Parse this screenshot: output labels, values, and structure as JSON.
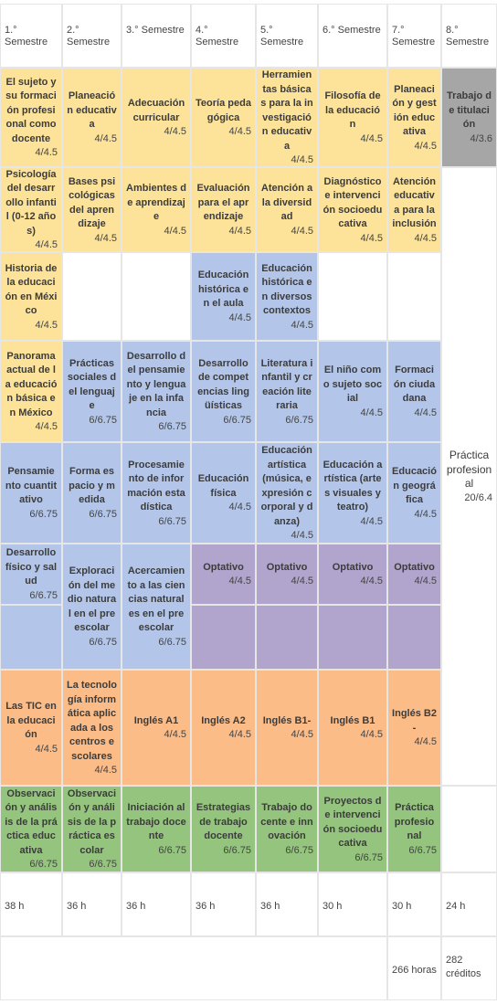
{
  "headers": [
    "1.° Semestre",
    "2.° Semestre",
    "3.° Semestre",
    "4.° Semestre",
    "5.° Semestre",
    "6.° Semestre",
    "7.° Semestre",
    "8.° Semestre"
  ],
  "colors": {
    "yellow": "#fde39a",
    "blue": "#b3c6ea",
    "purple": "#b1a4cd",
    "orange": "#fbbc88",
    "green": "#94c47d",
    "gray": "#a6a6a6",
    "white": "#ffffff"
  },
  "cells": [
    {
      "name": "El sujeto y su formación profesional como docente",
      "credits": "4/4.5",
      "color": "yellow",
      "col": 0,
      "row": 0,
      "span": 1
    },
    {
      "name": "Planeación educativa",
      "credits": "4/4.5",
      "color": "yellow",
      "col": 1,
      "row": 0,
      "span": 1
    },
    {
      "name": "Adecuación curricular",
      "credits": "4/4.5",
      "color": "yellow",
      "col": 2,
      "row": 0,
      "span": 1
    },
    {
      "name": "Teoría pedagógica",
      "credits": "4/4.5",
      "color": "yellow",
      "col": 3,
      "row": 0,
      "span": 1
    },
    {
      "name": "Herramientas básicas para la investigación educativa",
      "credits": "4/4.5",
      "color": "yellow",
      "col": 4,
      "row": 0,
      "span": 1
    },
    {
      "name": "Filosofía de la educación",
      "credits": "4/4.5",
      "color": "yellow",
      "col": 5,
      "row": 0,
      "span": 1
    },
    {
      "name": "Planeación y gestión educativa",
      "credits": "4/4.5",
      "color": "yellow",
      "col": 6,
      "row": 0,
      "span": 1
    },
    {
      "name": "Trabajo de titulación",
      "credits": "4/3.6",
      "color": "gray",
      "col": 7,
      "row": 0,
      "span": 1
    },
    {
      "name": "Psicología del desarrollo infantil (0-12 años)",
      "credits": "4/4.5",
      "color": "yellow",
      "col": 0,
      "row": 1,
      "span": 1
    },
    {
      "name": "Bases psicológicas del aprendizaje",
      "credits": "4/4.5",
      "color": "yellow",
      "col": 1,
      "row": 1,
      "span": 1
    },
    {
      "name": "Ambientes de aprendizaje",
      "credits": "4/4.5",
      "color": "yellow",
      "col": 2,
      "row": 1,
      "span": 1
    },
    {
      "name": "Evaluación para el aprendizaje",
      "credits": "4/4.5",
      "color": "yellow",
      "col": 3,
      "row": 1,
      "span": 1
    },
    {
      "name": "Atención a la diversidad",
      "credits": "4/4.5",
      "color": "yellow",
      "col": 4,
      "row": 1,
      "span": 1
    },
    {
      "name": "Diagnóstico e intervención socioeducativa",
      "credits": "4/4.5",
      "color": "yellow",
      "col": 5,
      "row": 1,
      "span": 1
    },
    {
      "name": "Atención educativa para la inclusión",
      "credits": "4/4.5",
      "color": "yellow",
      "col": 6,
      "row": 1,
      "span": 1
    },
    {
      "name": "Práctica profesional",
      "credits": "20/6.4",
      "color": "white",
      "col": 7,
      "row": 1,
      "span": 7
    },
    {
      "name": "Historia de la educación en México",
      "credits": "4/4.5",
      "color": "yellow",
      "col": 0,
      "row": 2,
      "span": 1
    },
    {
      "name": "",
      "credits": "",
      "color": "white",
      "col": 1,
      "row": 2,
      "span": 1
    },
    {
      "name": "",
      "credits": "",
      "color": "white",
      "col": 2,
      "row": 2,
      "span": 1
    },
    {
      "name": "Educación histórica en el aula",
      "credits": "4/4.5",
      "color": "blue",
      "col": 3,
      "row": 2,
      "span": 1
    },
    {
      "name": "Educación histórica en diversos contextos",
      "credits": "4/4.5",
      "color": "blue",
      "col": 4,
      "row": 2,
      "span": 1
    },
    {
      "name": "",
      "credits": "",
      "color": "white",
      "col": 5,
      "row": 2,
      "span": 1
    },
    {
      "name": "",
      "credits": "",
      "color": "white",
      "col": 6,
      "row": 2,
      "span": 1
    },
    {
      "name": "Panorama actual de la educación básica en México",
      "credits": "4/4.5",
      "color": "yellow",
      "col": 0,
      "row": 3,
      "span": 1
    },
    {
      "name": "Prácticas sociales del lenguaje",
      "credits": "6/6.75",
      "color": "blue",
      "col": 1,
      "row": 3,
      "span": 1
    },
    {
      "name": "Desarrollo del pensamiento y lenguaje en la infancia",
      "credits": "6/6.75",
      "color": "blue",
      "col": 2,
      "row": 3,
      "span": 1
    },
    {
      "name": "Desarrollo de competencias lingüísticas",
      "credits": "6/6.75",
      "color": "blue",
      "col": 3,
      "row": 3,
      "span": 1
    },
    {
      "name": "Literatura infantil y creación literaria",
      "credits": "6/6.75",
      "color": "blue",
      "col": 4,
      "row": 3,
      "span": 1
    },
    {
      "name": "El niño como sujeto social",
      "credits": "4/4.5",
      "color": "blue",
      "col": 5,
      "row": 3,
      "span": 1
    },
    {
      "name": "Formación ciudadana",
      "credits": "4/4.5",
      "color": "blue",
      "col": 6,
      "row": 3,
      "span": 1
    },
    {
      "name": "Pensamiento cuantitativo",
      "credits": "6/6.75",
      "color": "blue",
      "col": 0,
      "row": 4,
      "span": 1
    },
    {
      "name": "Forma espacio y medida",
      "credits": "6/6.75",
      "color": "blue",
      "col": 1,
      "row": 4,
      "span": 1
    },
    {
      "name": "Procesamiento de información estadística",
      "credits": "6/6.75",
      "color": "blue",
      "col": 2,
      "row": 4,
      "span": 1
    },
    {
      "name": "Educación física",
      "credits": "4/4.5",
      "color": "blue",
      "col": 3,
      "row": 4,
      "span": 1
    },
    {
      "name": "Educación artística (música, expresión corporal y danza)",
      "credits": "4/4.5",
      "color": "blue",
      "col": 4,
      "row": 4,
      "span": 1
    },
    {
      "name": "Educación artística (artes visuales y teatro)",
      "credits": "4/4.5",
      "color": "blue",
      "col": 5,
      "row": 4,
      "span": 1
    },
    {
      "name": "Educación geográfica",
      "credits": "4/4.5",
      "color": "blue",
      "col": 6,
      "row": 4,
      "span": 1
    },
    {
      "name": "Desarrollo físico y salud",
      "credits": "6/6.75",
      "color": "blue",
      "col": 0,
      "row": 5,
      "span": 1
    },
    {
      "name": "Exploración del medio natural en el preescolar",
      "credits": "6/6.75",
      "color": "blue",
      "col": 1,
      "row": 5,
      "span": 2
    },
    {
      "name": "Acercamiento a las ciencias naturales en el preescolar",
      "credits": "6/6.75",
      "color": "blue",
      "col": 2,
      "row": 5,
      "span": 2
    },
    {
      "name": "Optativo",
      "credits": "4/4.5",
      "color": "purple",
      "col": 3,
      "row": 5,
      "span": 1
    },
    {
      "name": "Optativo",
      "credits": "4/4.5",
      "color": "purple",
      "col": 4,
      "row": 5,
      "span": 1
    },
    {
      "name": "Optativo",
      "credits": "4/4.5",
      "color": "purple",
      "col": 5,
      "row": 5,
      "span": 1
    },
    {
      "name": "Optativo",
      "credits": "4/4.5",
      "color": "purple",
      "col": 6,
      "row": 5,
      "span": 1
    },
    {
      "name": "",
      "credits": "",
      "color": "blue",
      "col": 0,
      "row": 6,
      "span": 1
    },
    {
      "name": "",
      "credits": "",
      "color": "purple",
      "col": 3,
      "row": 6,
      "span": 1
    },
    {
      "name": "",
      "credits": "",
      "color": "purple",
      "col": 4,
      "row": 6,
      "span": 1
    },
    {
      "name": "",
      "credits": "",
      "color": "purple",
      "col": 5,
      "row": 6,
      "span": 1
    },
    {
      "name": "",
      "credits": "",
      "color": "purple",
      "col": 6,
      "row": 6,
      "span": 1
    },
    {
      "name": "Las TIC en la educación",
      "credits": "4/4.5",
      "color": "orange",
      "col": 0,
      "row": 7,
      "span": 1
    },
    {
      "name": "La tecnología informática aplicada a los centros escolares",
      "credits": "4/4.5",
      "color": "orange",
      "col": 1,
      "row": 7,
      "span": 1
    },
    {
      "name": "Inglés A1",
      "credits": "4/4.5",
      "color": "orange",
      "col": 2,
      "row": 7,
      "span": 1
    },
    {
      "name": "Inglés A2",
      "credits": "4/4.5",
      "color": "orange",
      "col": 3,
      "row": 7,
      "span": 1
    },
    {
      "name": "Inglés B1-",
      "credits": "4/4.5",
      "color": "orange",
      "col": 4,
      "row": 7,
      "span": 1
    },
    {
      "name": "Inglés B1",
      "credits": "4/4.5",
      "color": "orange",
      "col": 5,
      "row": 7,
      "span": 1
    },
    {
      "name": "Inglés B2-",
      "credits": "4/4.5",
      "color": "orange",
      "col": 6,
      "row": 7,
      "span": 1
    },
    {
      "name": "",
      "credits": "",
      "color": "white",
      "col": 7,
      "row": 8,
      "span": 1
    },
    {
      "name": "Observación y análisis de la práctica educativa",
      "credits": "6/6.75",
      "color": "green",
      "col": 0,
      "row": 8,
      "span": 1
    },
    {
      "name": "Observación y análisis de la práctica escolar",
      "credits": "6/6.75",
      "color": "green",
      "col": 1,
      "row": 8,
      "span": 1
    },
    {
      "name": "Iniciación al trabajo docente",
      "credits": "6/6.75",
      "color": "green",
      "col": 2,
      "row": 8,
      "span": 1
    },
    {
      "name": "Estrategias de trabajo docente",
      "credits": "6/6.75",
      "color": "green",
      "col": 3,
      "row": 8,
      "span": 1
    },
    {
      "name": "Trabajo docente e innovación",
      "credits": "6/6.75",
      "color": "green",
      "col": 4,
      "row": 8,
      "span": 1
    },
    {
      "name": "Proyectos de intervención socioeducativa",
      "credits": "6/6.75",
      "color": "green",
      "col": 5,
      "row": 8,
      "span": 1
    },
    {
      "name": "Práctica profesional",
      "credits": "6/6.75",
      "color": "green",
      "col": 6,
      "row": 8,
      "span": 1
    }
  ],
  "hours": [
    "38 h",
    "36 h",
    "36 h",
    "36 h",
    "36 h",
    "30 h",
    "30 h",
    "24 h"
  ],
  "totals": {
    "hours": "266 horas",
    "credits": "282 créditos"
  }
}
